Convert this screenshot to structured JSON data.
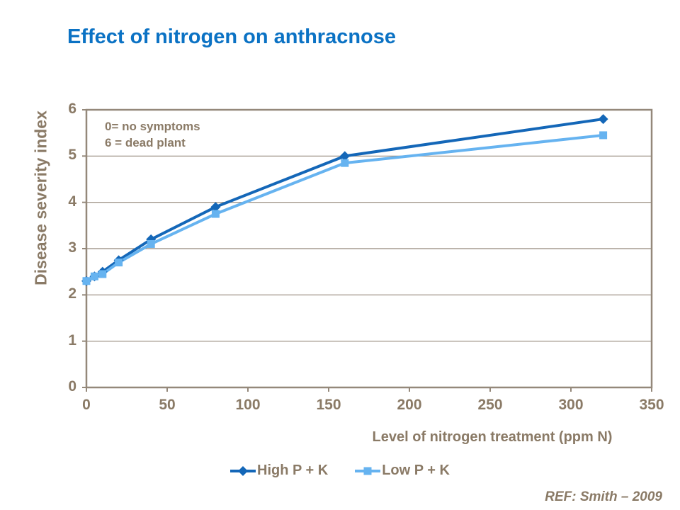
{
  "slide": {
    "title": "Effect of nitrogen on anthracnose",
    "ref": "REF: Smith – 2009"
  },
  "colors": {
    "title_blue": "#0b72c4",
    "text_brown": "#8a7a66",
    "axis_brown": "#94887a",
    "series_high": "#1467b8",
    "series_low": "#66b3f0"
  },
  "chart_data": {
    "type": "line",
    "title": "Effect of nitrogen on anthracnose",
    "xlabel": "Level of nitrogen treatment (ppm N)",
    "ylabel": "Disease severity index",
    "annotation": [
      "0= no symptoms",
      "6 = dead plant"
    ],
    "x": [
      0,
      5,
      10,
      20,
      40,
      80,
      160,
      320
    ],
    "series": [
      {
        "name": "High P + K",
        "marker": "diamond",
        "color": "#1467b8",
        "values": [
          2.3,
          2.4,
          2.5,
          2.75,
          3.2,
          3.9,
          5.0,
          5.8
        ]
      },
      {
        "name": "Low P + K",
        "marker": "square",
        "color": "#66b3f0",
        "values": [
          2.3,
          2.4,
          2.45,
          2.7,
          3.1,
          3.75,
          4.85,
          5.45
        ]
      }
    ],
    "xlim": [
      0,
      350
    ],
    "ylim": [
      0,
      6
    ],
    "xticks": [
      0,
      50,
      100,
      150,
      200,
      250,
      300,
      350
    ],
    "yticks": [
      0,
      1,
      2,
      3,
      4,
      5,
      6
    ],
    "grid": "horizontal",
    "legend_position": "bottom"
  }
}
